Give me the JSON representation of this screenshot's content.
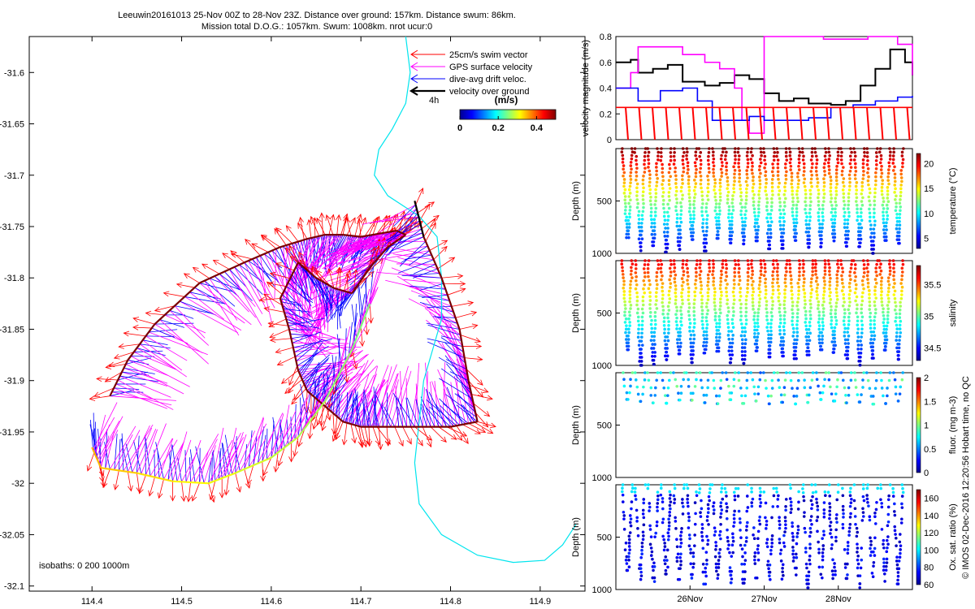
{
  "title": {
    "line1": "Leeuwin20161013 25-Nov 00Z to 28-Nov 23Z. Distance over ground: 157km. Distance swum: 86km.",
    "line2": "Mission total D.O.G.: 1057km. Swum: 1008km. nrot ucur:0"
  },
  "watermark": "© IMOS 02-Dec-2016 12:20:56 Hobart time, no QC",
  "map": {
    "xlim": [
      114.33,
      114.95
    ],
    "ylim": [
      -32.105,
      -31.565
    ],
    "xticks": [
      "114.4",
      "114.5",
      "114.6",
      "114.7",
      "114.8",
      "114.9"
    ],
    "xtick_values": [
      114.4,
      114.5,
      114.6,
      114.7,
      114.8,
      114.9
    ],
    "yticks": [
      "-31.6",
      "-31.65",
      "-31.7",
      "-31.75",
      "-31.8",
      "-31.85",
      "-31.9",
      "-31.95",
      "-32",
      "-32.05",
      "-32.1"
    ],
    "ytick_values": [
      -31.6,
      -31.65,
      -31.7,
      -31.75,
      -31.8,
      -31.85,
      -31.9,
      -31.95,
      -32,
      -32.05,
      -32.1
    ],
    "isobaths_label": "isobaths: 0   200   1000m",
    "legend": {
      "items": [
        {
          "label": "25cm/s swim vector",
          "color": "#ff0000"
        },
        {
          "label": "GPS surface velocity",
          "color": "#ff00ff"
        },
        {
          "label": "dive-avg drift veloc.",
          "color": "#0000ff"
        },
        {
          "label": "velocity over ground",
          "color": "#000000"
        }
      ],
      "scale_label": "4h"
    },
    "colorbar": {
      "title": "(m/s)",
      "ticks": [
        "0",
        "0.2",
        "0.4"
      ],
      "tick_values": [
        0,
        0.2,
        0.4
      ],
      "range": [
        0,
        0.5
      ]
    },
    "colors": {
      "swim": "#ff0000",
      "surface": "#ff00ff",
      "drift": "#0000ff",
      "ground": "#000000",
      "coast": "#00e5ee"
    }
  },
  "chart_data": [
    {
      "type": "line",
      "panel": "map",
      "xlabel": "",
      "ylabel": "",
      "series": [
        {
          "name": "velocity over ground",
          "x": [
            114.42,
            114.44,
            114.47,
            114.52,
            114.57,
            114.61,
            114.64,
            114.66,
            114.68,
            114.7,
            114.72,
            114.74,
            114.75,
            114.73,
            114.71,
            114.69,
            114.67,
            114.65,
            114.63,
            114.61,
            114.62,
            114.63,
            114.64,
            114.66,
            114.68,
            114.7,
            114.72,
            114.76,
            114.8,
            114.83,
            114.82,
            114.81,
            114.79,
            114.77,
            114.76
          ],
          "y": [
            -31.915,
            -31.88,
            -31.845,
            -31.805,
            -31.785,
            -31.77,
            -31.762,
            -31.758,
            -31.758,
            -31.76,
            -31.757,
            -31.754,
            -31.758,
            -31.77,
            -31.79,
            -31.815,
            -31.81,
            -31.8,
            -31.785,
            -31.82,
            -31.85,
            -31.89,
            -31.91,
            -31.925,
            -31.94,
            -31.945,
            -31.945,
            -31.945,
            -31.945,
            -31.94,
            -31.9,
            -31.85,
            -31.8,
            -31.76,
            -31.725
          ]
        },
        {
          "name": "",
          "x": [
            114.71,
            114.69,
            114.66,
            114.63,
            114.6,
            114.56,
            114.53,
            114.49,
            114.45,
            114.41,
            114.4
          ],
          "y": [
            -31.825,
            -31.87,
            -31.92,
            -31.955,
            -31.975,
            -31.99,
            -32.0,
            -31.998,
            -31.99,
            -31.985,
            -31.965
          ]
        }
      ]
    },
    {
      "type": "line",
      "panel": "speed",
      "xlabel": "",
      "ylabel": "velocity magnitude (m/s)",
      "ylim": [
        0,
        0.8
      ],
      "yticks": [
        "0",
        "0.2",
        "0.4",
        "0.6",
        "0.8"
      ],
      "ytick_values": [
        0,
        0.2,
        0.4,
        0.6,
        0.8
      ],
      "xlim": [
        25.0,
        29.0
      ],
      "series": [
        {
          "name": "velocity over ground",
          "color": "#000000",
          "x": [
            25.0,
            25.2,
            25.3,
            25.5,
            25.7,
            25.9,
            26.2,
            26.4,
            26.6,
            26.8,
            27.0,
            27.2,
            27.4,
            27.6,
            27.9,
            28.1,
            28.3,
            28.5,
            28.7,
            28.9,
            29.0
          ],
          "y": [
            0.6,
            0.62,
            0.52,
            0.55,
            0.58,
            0.45,
            0.42,
            0.44,
            0.5,
            0.47,
            0.36,
            0.3,
            0.32,
            0.28,
            0.27,
            0.3,
            0.42,
            0.55,
            0.7,
            0.6,
            0.5
          ]
        },
        {
          "name": "GPS surface velocity",
          "color": "#ff00ff",
          "x": [
            25.0,
            25.2,
            25.3,
            25.5,
            25.7,
            25.9,
            26.2,
            26.4,
            26.6,
            26.7,
            26.8,
            27.0,
            27.2,
            27.5,
            27.8,
            28.1,
            28.4,
            28.6,
            28.8,
            29.0
          ],
          "y": [
            0.4,
            0.52,
            0.72,
            0.72,
            0.72,
            0.66,
            0.6,
            0.55,
            0.4,
            0.15,
            0.05,
            0.8,
            0.8,
            0.8,
            0.78,
            0.78,
            0.8,
            0.8,
            0.74,
            0.5
          ]
        },
        {
          "name": "dive-avg drift veloc.",
          "color": "#0000ff",
          "x": [
            25.0,
            25.3,
            25.6,
            25.9,
            26.1,
            26.3,
            26.6,
            26.8,
            27.0,
            27.3,
            27.6,
            27.9,
            28.2,
            28.5,
            28.8,
            29.0
          ],
          "y": [
            0.4,
            0.3,
            0.38,
            0.4,
            0.3,
            0.15,
            0.15,
            0.18,
            0.15,
            0.15,
            0.17,
            0.25,
            0.27,
            0.3,
            0.33,
            0.34
          ]
        },
        {
          "name": "25cm/s swim vector",
          "color": "#ff0000",
          "x": [
            25.0,
            29.0
          ],
          "y": [
            0.25,
            0.25
          ]
        }
      ]
    },
    {
      "type": "scatter",
      "panel": "temperature",
      "ylabel": "Depth (m)",
      "ylim": [
        0,
        1000
      ],
      "yticks": [
        "500",
        "1000"
      ],
      "ytick_values": [
        500,
        1000
      ],
      "colorbar_label": "temperature (°C)",
      "colorbar_ticks": [
        "5",
        "10",
        "15",
        "20"
      ],
      "colorbar_tick_values": [
        5,
        10,
        15,
        20
      ],
      "crange": [
        3,
        22
      ],
      "dives": 22,
      "max_depth": 1000
    },
    {
      "type": "scatter",
      "panel": "salinity",
      "ylabel": "Depth (m)",
      "ylim": [
        0,
        1000
      ],
      "yticks": [
        "500",
        "1000"
      ],
      "ytick_values": [
        500,
        1000
      ],
      "colorbar_label": "salinity",
      "colorbar_ticks": [
        "34.5",
        "35",
        "35.5"
      ],
      "colorbar_tick_values": [
        34.5,
        35,
        35.5
      ],
      "crange": [
        34.3,
        35.8
      ],
      "dives": 22,
      "max_depth": 1000
    },
    {
      "type": "scatter",
      "panel": "fluorescence",
      "ylabel": "Depth (m)",
      "ylim": [
        0,
        1000
      ],
      "yticks": [
        "500",
        "1000"
      ],
      "ytick_values": [
        500,
        1000
      ],
      "colorbar_label": "fluor. (mg m-3)",
      "colorbar_ticks": [
        "0",
        "0.5",
        "1",
        "1.5",
        "2"
      ],
      "colorbar_tick_values": [
        0,
        0.5,
        1,
        1.5,
        2
      ],
      "crange": [
        0,
        2
      ],
      "dives": 22,
      "max_depth": 300
    },
    {
      "type": "scatter",
      "panel": "oxygen",
      "ylabel": "Depth (m)",
      "ylim": [
        0,
        1000
      ],
      "yticks": [
        "500",
        "1000"
      ],
      "ytick_values": [
        500,
        1000
      ],
      "colorbar_label": "Ox. sat. ratio (%)",
      "colorbar_ticks": [
        "60",
        "80",
        "100",
        "120",
        "140",
        "160"
      ],
      "colorbar_tick_values": [
        60,
        80,
        100,
        120,
        140,
        160
      ],
      "crange": [
        60,
        170
      ],
      "dives": 22,
      "max_depth": 1000,
      "xticks": [
        "26Nov",
        "27Nov",
        "28Nov"
      ],
      "xtick_values": [
        26,
        27,
        28
      ],
      "xlim": [
        25.0,
        29.0
      ]
    }
  ]
}
